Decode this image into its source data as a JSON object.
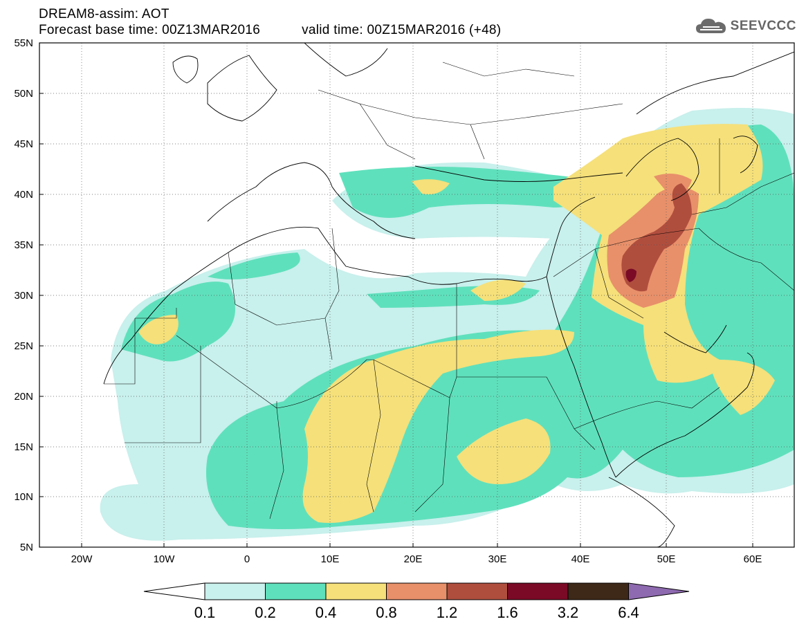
{
  "header": {
    "line1": "DREAM8-assim: AOT",
    "base_time": "Forecast base time: 00Z13MAR2016",
    "valid_time": "valid time: 00Z15MAR2016 (+48)"
  },
  "logo": {
    "text": "SEEVCCC",
    "icon": "cloud-icon"
  },
  "map": {
    "lat_labels": [
      "55N",
      "50N",
      "45N",
      "40N",
      "35N",
      "30N",
      "25N",
      "20N",
      "15N",
      "10N",
      "5N"
    ],
    "lon_labels": [
      "20W",
      "10W",
      "0",
      "10E",
      "20E",
      "30E",
      "40E",
      "50E",
      "60E"
    ],
    "lat_range": [
      5,
      55
    ],
    "lon_range": [
      -25,
      65
    ],
    "grid": "dotted"
  },
  "colorbar": {
    "labels": [
      "0.1",
      "0.2",
      "0.4",
      "0.8",
      "1.2",
      "1.6",
      "3.2",
      "6.4"
    ],
    "colors": {
      "below": "#ffffff",
      "c1": "#c8f0ec",
      "c2": "#5fe0bc",
      "c3": "#f5e07a",
      "c4": "#e8906a",
      "c5": "#b04e3e",
      "c6": "#7a0a26",
      "c7": "#3e2818",
      "above": "#8e6ab0"
    }
  }
}
